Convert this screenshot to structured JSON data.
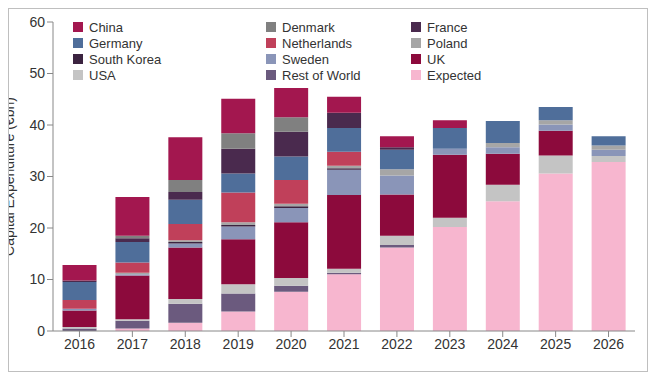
{
  "chart_data": {
    "type": "bar",
    "stacked": true,
    "grid": false,
    "legend": "upper left",
    "y_label": "Capital Expenditure (€bn)",
    "categories": [
      "2016",
      "2017",
      "2018",
      "2019",
      "2020",
      "2021",
      "2022",
      "2023",
      "2024",
      "2025",
      "2026"
    ],
    "ylim": [
      0,
      60
    ],
    "yticks": [
      0,
      10,
      20,
      30,
      40,
      50,
      60
    ],
    "series": [
      {
        "name": "China",
        "color": "#A3174F",
        "values": [
          3,
          7.5,
          8.3,
          6.7,
          5.7,
          3.1,
          2.1,
          1.5,
          0,
          0,
          0
        ]
      },
      {
        "name": "Denmark",
        "color": "#808080",
        "values": [
          0,
          0.5,
          2.3,
          3,
          2.8,
          0,
          0,
          0,
          0,
          0,
          0
        ]
      },
      {
        "name": "France",
        "color": "#4A2A4E",
        "values": [
          0.3,
          0.7,
          1.5,
          4.8,
          4.8,
          3,
          0.5,
          0,
          0,
          0,
          0
        ]
      },
      {
        "name": "Germany",
        "color": "#4F6E9A",
        "values": [
          3.5,
          4,
          4.7,
          3.7,
          4.6,
          4.6,
          3.8,
          4,
          4.3,
          2.6,
          1.8
        ]
      },
      {
        "name": "Netherlands",
        "color": "#C0405A",
        "values": [
          1.7,
          2,
          3.2,
          5.8,
          4.6,
          2.7,
          0,
          0,
          0,
          0,
          0
        ]
      },
      {
        "name": "Poland",
        "color": "#A6A6A6",
        "values": [
          0,
          0.3,
          0.3,
          0.5,
          0.5,
          0.5,
          1.2,
          0,
          0.8,
          0.8,
          0.8
        ]
      },
      {
        "name": "South Korea",
        "color": "#3B2340",
        "values": [
          0,
          0,
          0.3,
          0.3,
          0.3,
          0.3,
          0,
          0,
          0,
          0,
          0
        ]
      },
      {
        "name": "Sweden",
        "color": "#8A95B8",
        "values": [
          0.3,
          0.2,
          0.8,
          2.5,
          2.8,
          4.9,
          3.7,
          1.2,
          1.3,
          1.2,
          1.2
        ]
      },
      {
        "name": "UK",
        "color": "#8C0A3C",
        "values": [
          3.2,
          8.5,
          10,
          8.7,
          10.8,
          14.3,
          8,
          12.2,
          6,
          4.8,
          0
        ]
      },
      {
        "name": "USA",
        "color": "#C4C4C4",
        "values": [
          0.3,
          0.3,
          0.9,
          1.8,
          1.5,
          0.8,
          1.8,
          1.8,
          3.2,
          3.5,
          1.2
        ]
      },
      {
        "name": "Rest of World",
        "color": "#6B5A7E",
        "values": [
          0.5,
          1.5,
          3.7,
          3.5,
          1.2,
          0.3,
          0.5,
          0,
          0,
          0,
          0
        ]
      },
      {
        "name": "Expected",
        "color": "#F7B6CF",
        "values": [
          0,
          0.5,
          1.6,
          3.8,
          7.6,
          11,
          16.2,
          20.2,
          25.2,
          30.6,
          32.8
        ]
      }
    ]
  }
}
